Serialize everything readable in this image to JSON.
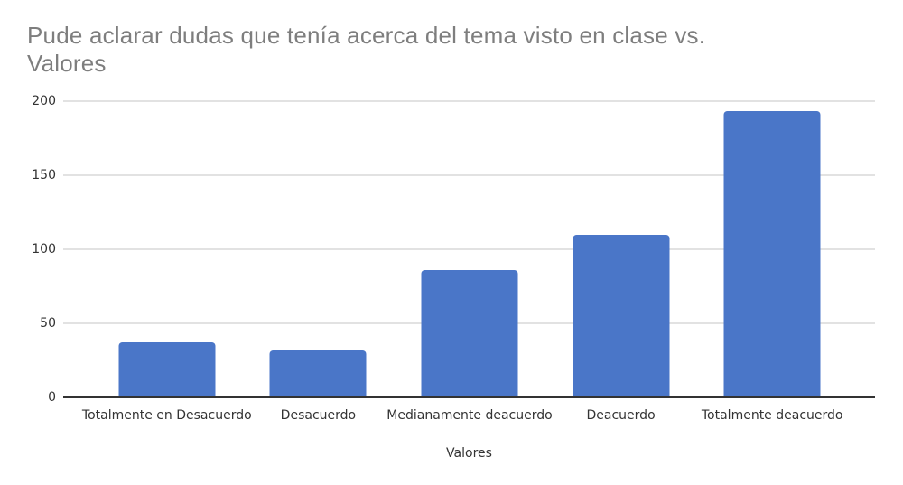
{
  "chart_data": {
    "type": "bar",
    "title": "Pude aclarar dudas que tenía acerca del tema visto en clase vs. Valores",
    "title_lines": [
      "Pude aclarar dudas que tenía acerca del tema visto en clase vs.",
      "Valores"
    ],
    "categories": [
      "Totalmente en Desacuerdo",
      "Desacuerdo",
      "Medianamente deacuerdo",
      "Deacuerdo",
      "Totalmente deacuerdo"
    ],
    "values": [
      37,
      32,
      86,
      110,
      193
    ],
    "xlabel": "Valores",
    "ylabel": "",
    "ylim": [
      0,
      200
    ],
    "yticks": [
      0,
      50,
      100,
      150,
      200
    ],
    "grid": true,
    "legend": "none",
    "colors": {
      "bar": "#4a76c8",
      "title": "#7e7e7e",
      "axis_text": "#333333",
      "gridline": "#e2e2e2",
      "baseline": "#333333",
      "background": "#ffffff"
    }
  }
}
